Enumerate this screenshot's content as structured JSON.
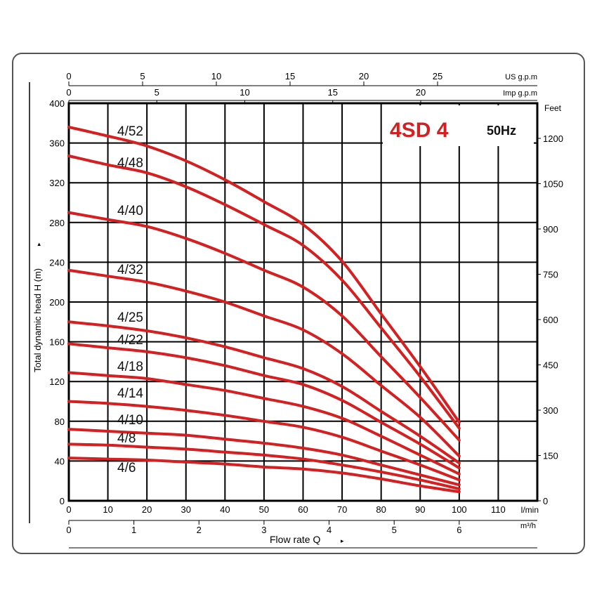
{
  "chart_data": {
    "type": "line",
    "title": "4SD 4",
    "subtitle": "50Hz",
    "xlabel": "Flow rate Q",
    "ylabel": "Total dynamic head H (m)",
    "x_unit": "l/min",
    "xlim": [
      0,
      120
    ],
    "ylim": [
      0,
      400
    ],
    "grid": true,
    "x_ticks": [
      0,
      10,
      20,
      30,
      40,
      50,
      60,
      70,
      80,
      90,
      100,
      110
    ],
    "y_ticks": [
      0,
      40,
      80,
      120,
      160,
      200,
      240,
      280,
      320,
      360,
      400
    ],
    "secondary_axes": {
      "us_gpm": {
        "label": "US g.p.m",
        "ticks": [
          0,
          5,
          10,
          15,
          20,
          25
        ]
      },
      "imp_gpm": {
        "label": "Imp g.p.m",
        "ticks": [
          0,
          5,
          10,
          15,
          20
        ]
      },
      "m3h": {
        "label": "m³/h",
        "ticks": [
          0,
          1,
          2,
          3,
          4,
          5,
          6
        ]
      },
      "feet": {
        "label": "Feet",
        "ticks": [
          0,
          150,
          300,
          450,
          600,
          750,
          900,
          1050,
          1200
        ]
      }
    },
    "x": [
      0,
      10,
      20,
      30,
      40,
      50,
      60,
      70,
      80,
      90,
      100
    ],
    "series": [
      {
        "name": "4/52",
        "values": [
          376,
          367,
          357,
          342,
          323,
          301,
          278,
          241,
          188,
          135,
          79
        ]
      },
      {
        "name": "4/48",
        "values": [
          347,
          338,
          330,
          316,
          298,
          278,
          257,
          222,
          174,
          125,
          73
        ]
      },
      {
        "name": "4/40",
        "values": [
          290,
          283,
          276,
          264,
          249,
          232,
          215,
          186,
          145,
          104,
          61
        ]
      },
      {
        "name": "4/32",
        "values": [
          232,
          226,
          220,
          211,
          200,
          186,
          172,
          148,
          116,
          84,
          45
        ]
      },
      {
        "name": "4/25",
        "values": [
          180,
          176,
          171,
          164,
          155,
          144,
          133,
          115,
          90,
          65,
          38
        ]
      },
      {
        "name": "4/22",
        "values": [
          158,
          154,
          150,
          144,
          136,
          126,
          117,
          101,
          79,
          57,
          33
        ]
      },
      {
        "name": "4/18",
        "values": [
          129,
          126,
          123,
          117,
          111,
          103,
          95,
          83,
          65,
          46,
          27
        ]
      },
      {
        "name": "4/14",
        "values": [
          100,
          98,
          95,
          91,
          86,
          80,
          74,
          64,
          50,
          36,
          21
        ]
      },
      {
        "name": "4/10",
        "values": [
          72,
          70,
          68,
          66,
          62,
          58,
          53,
          46,
          36,
          26,
          16
        ]
      },
      {
        "name": "4/8",
        "values": [
          57,
          56,
          54,
          52,
          49,
          46,
          42,
          36,
          29,
          21,
          12
        ]
      },
      {
        "name": "4/6",
        "values": [
          43,
          42,
          41,
          39,
          37,
          34,
          32,
          28,
          22,
          15,
          9
        ]
      }
    ],
    "colors": {
      "curve": "#d42020",
      "title": "#d42020",
      "grid": "#000000"
    }
  }
}
